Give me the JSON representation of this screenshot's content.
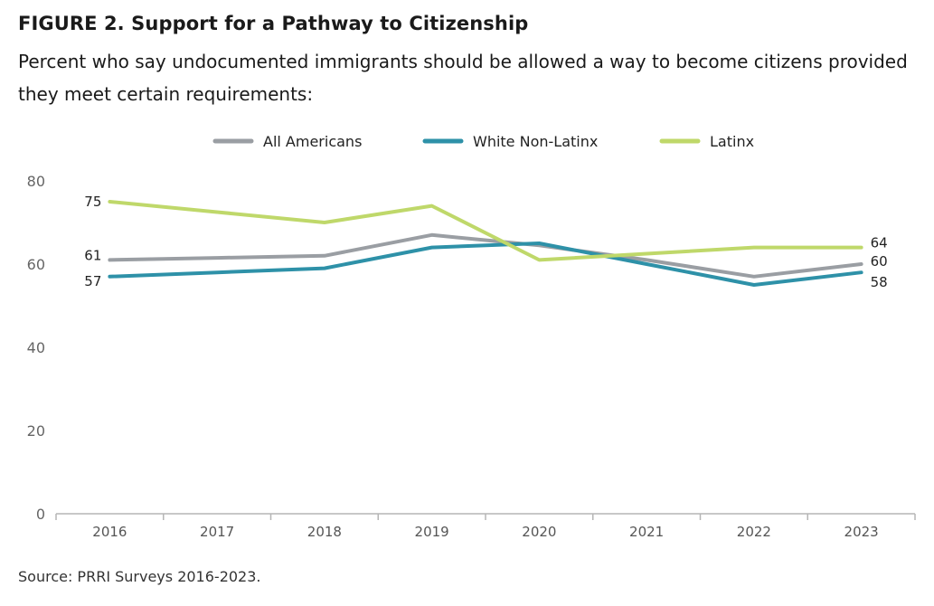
{
  "header": {
    "title": "FIGURE 2. Support for a Pathway to Citizenship",
    "subtitle": "Percent who say undocumented immigrants should be allowed a way to become citizens provided they meet certain requirements:"
  },
  "footer": {
    "source": "Source: PRRI Surveys 2016-2023."
  },
  "chart_data": {
    "type": "line",
    "title": "FIGURE 2. Support for a Pathway to Citizenship",
    "subtitle": "Percent who say undocumented immigrants should be allowed a way to become citizens provided they meet certain requirements:",
    "xlabel": "",
    "ylabel": "",
    "x": [
      "2016",
      "2017",
      "2018",
      "2019",
      "2020",
      "2021",
      "2022",
      "2023"
    ],
    "ylim": [
      0,
      80
    ],
    "yticks": [
      "0",
      "20",
      "40",
      "60",
      "80"
    ],
    "grid": false,
    "legend_position": "top-center",
    "series": [
      {
        "name": "All Americans",
        "color": "#9a9ea3",
        "values": [
          61,
          61.5,
          62,
          67,
          64.5,
          61,
          57,
          60
        ]
      },
      {
        "name": "White Non-Latinx",
        "color": "#2e91a8",
        "values": [
          57,
          58,
          59,
          64,
          65,
          60,
          55,
          58
        ]
      },
      {
        "name": "Latinx",
        "color": "#bfd86a",
        "values": [
          75,
          72.5,
          70,
          74,
          61,
          62.5,
          64,
          64
        ]
      }
    ],
    "data_labels": [
      {
        "series": "Latinx",
        "x": "2016",
        "text": "75"
      },
      {
        "series": "All Americans",
        "x": "2016",
        "text": "61"
      },
      {
        "series": "White Non-Latinx",
        "x": "2016",
        "text": "57"
      },
      {
        "series": "Latinx",
        "x": "2023",
        "text": "64"
      },
      {
        "series": "All Americans",
        "x": "2023",
        "text": "60"
      },
      {
        "series": "White Non-Latinx",
        "x": "2023",
        "text": "58"
      }
    ]
  }
}
